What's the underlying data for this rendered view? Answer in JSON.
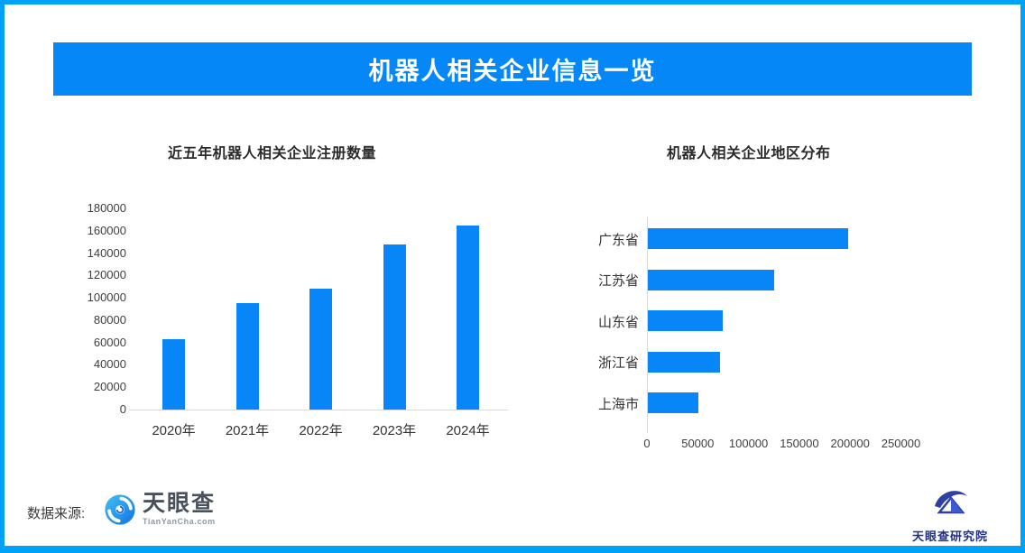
{
  "header": {
    "title": "机器人相关企业信息一览"
  },
  "chart_data": [
    {
      "type": "bar",
      "orientation": "vertical",
      "title": "近五年机器人相关企业注册数量",
      "categories": [
        "2020年",
        "2021年",
        "2022年",
        "2023年",
        "2024年"
      ],
      "values": [
        63000,
        95000,
        108000,
        148000,
        165000
      ],
      "xlabel": "",
      "ylabel": "",
      "ylim": [
        0,
        180000
      ],
      "yticks": [
        0,
        20000,
        40000,
        60000,
        80000,
        100000,
        120000,
        140000,
        160000,
        180000
      ],
      "grid": false,
      "legend": false,
      "bar_color": "#0886F8"
    },
    {
      "type": "bar",
      "orientation": "horizontal",
      "title": "机器人相关企业地区分布",
      "categories": [
        "广东省",
        "江苏省",
        "山东省",
        "浙江省",
        "上海市"
      ],
      "values": [
        197000,
        124000,
        74000,
        71000,
        50000
      ],
      "xlabel": "",
      "ylabel": "",
      "xlim": [
        0,
        250000
      ],
      "xticks": [
        0,
        50000,
        100000,
        150000,
        200000,
        250000
      ],
      "grid": false,
      "legend": false,
      "bar_color": "#0886F8"
    }
  ],
  "footer": {
    "source_label": "数据来源:",
    "tianyancha": {
      "name": "天眼查",
      "domain": "TianYanCha.com"
    },
    "research_institute": {
      "name": "天眼查研究院"
    }
  },
  "colors": {
    "frame_border": "#00A2F8",
    "banner_bg": "#0587F8",
    "banner_text": "#FFFFFF",
    "bar": "#0886F8",
    "axis_line": "#D9D9D9",
    "text_dark": "#333333"
  }
}
